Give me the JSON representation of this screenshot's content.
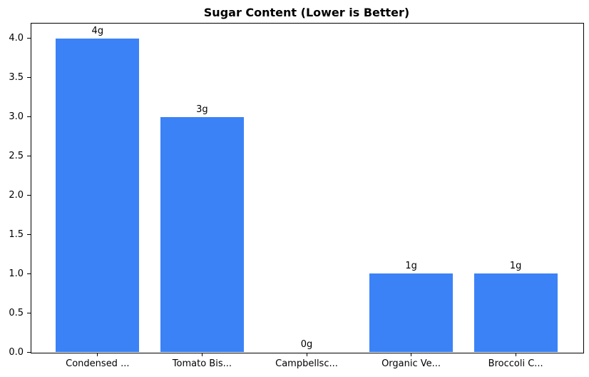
{
  "chart_data": {
    "type": "bar",
    "title": "Sugar Content (Lower is Better)",
    "categories": [
      "Condensed ...",
      "Tomato Bis...",
      "Campbellsc...",
      "Organic Ve...",
      "Broccoli C..."
    ],
    "values": [
      4,
      3,
      0,
      1,
      1
    ],
    "bar_labels": [
      "4g",
      "3g",
      "0g",
      "1g",
      "1g"
    ],
    "xlabel": "",
    "ylabel": "",
    "ylim": [
      0,
      4.2
    ],
    "yticks": [
      0.0,
      0.5,
      1.0,
      1.5,
      2.0,
      2.5,
      3.0,
      3.5,
      4.0
    ],
    "ytick_labels": [
      "0.0",
      "0.5",
      "1.0",
      "1.5",
      "2.0",
      "2.5",
      "3.0",
      "3.5",
      "4.0"
    ],
    "bar_color": "#3b82f6",
    "grid": false,
    "legend": null
  }
}
